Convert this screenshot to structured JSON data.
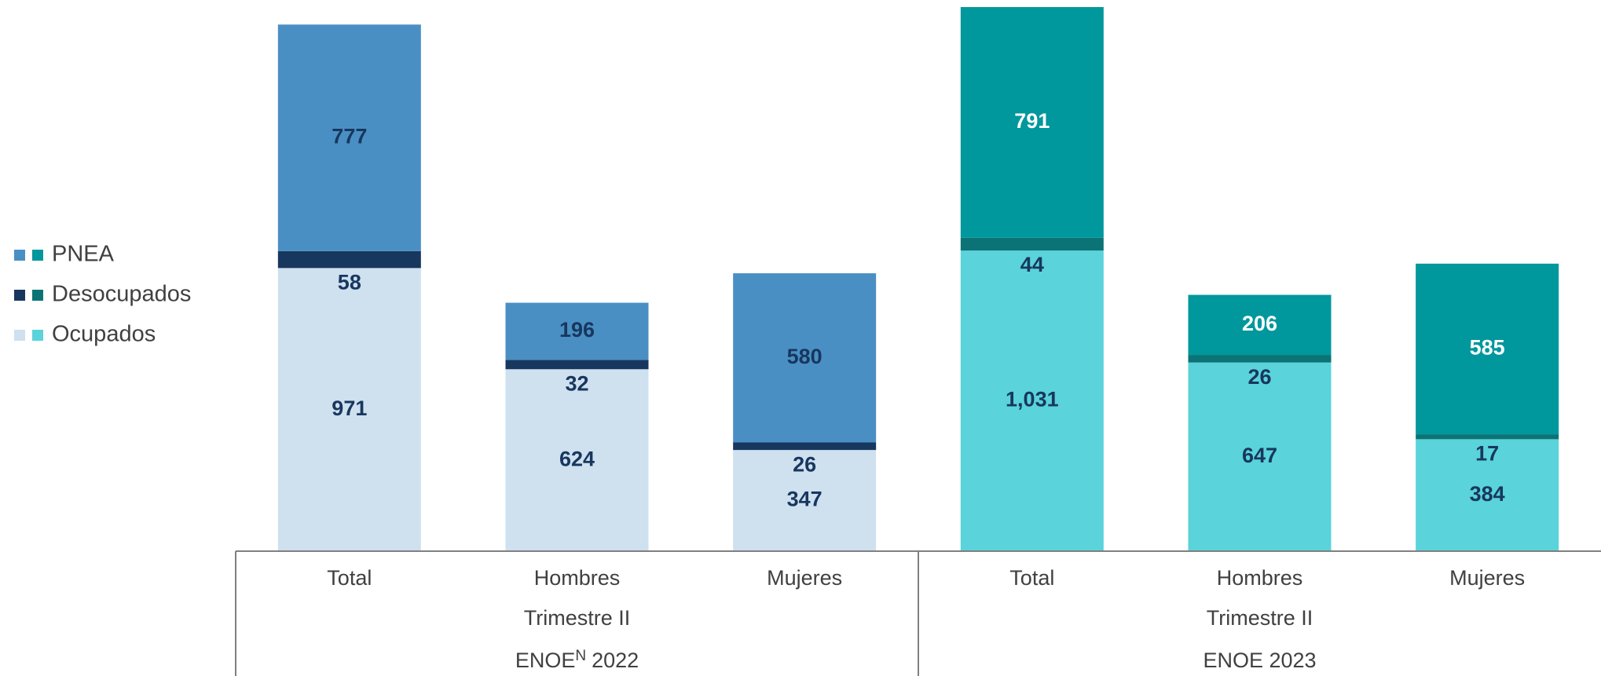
{
  "chart_data": {
    "type": "stacked_bar",
    "categories": [
      "Total",
      "Hombres",
      "Mujeres",
      "Total",
      "Hombres",
      "Mujeres"
    ],
    "groups": [
      {
        "period": "Trimestre II",
        "survey": "ENOE",
        "superscript": "N",
        "year": "2022"
      },
      {
        "period": "Trimestre II",
        "survey": "ENOE 2023"
      }
    ],
    "series": [
      {
        "name": "Ocupados",
        "colors": [
          "#cfe0ef",
          "#5ad3da"
        ],
        "label_colors": [
          "#17375e",
          "#17375e"
        ],
        "values": [
          971,
          624,
          347,
          1031,
          647,
          384
        ],
        "value_labels": [
          "971",
          "624",
          "347",
          "1,031",
          "647",
          "384"
        ]
      },
      {
        "name": "Desocupados",
        "colors": [
          "#17375e",
          "#0b7375"
        ],
        "label_colors": [
          "#17375e",
          "#17375e"
        ],
        "values": [
          58,
          32,
          26,
          44,
          26,
          17
        ]
      },
      {
        "name": "PNEA",
        "colors": [
          "#4a8fc4",
          "#00979d"
        ],
        "label_colors": [
          "#17375e",
          "#ffffff"
        ],
        "values": [
          777,
          196,
          580,
          791,
          206,
          585
        ]
      }
    ],
    "legend_position": "left"
  }
}
